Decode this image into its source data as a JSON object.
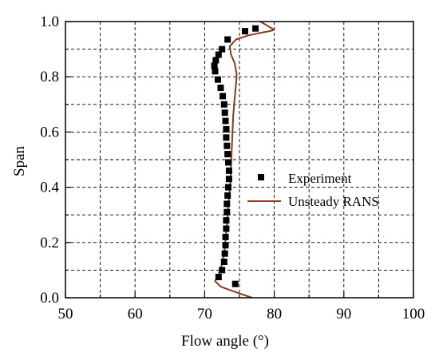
{
  "chart_data": {
    "type": "scatter",
    "xlabel": "Flow angle (°)",
    "ylabel": "Span",
    "xlim": [
      50,
      100
    ],
    "ylim": [
      0.0,
      1.0
    ],
    "x_ticks": [
      "50",
      "60",
      "70",
      "80",
      "90",
      "100"
    ],
    "y_ticks": [
      "0.0",
      "0.2",
      "0.4",
      "0.6",
      "0.8",
      "1.0"
    ],
    "grid": true,
    "grid_style": "dashed",
    "legend_position": "right",
    "series": [
      {
        "name": "Experiment",
        "kind": "markers",
        "marker": "square",
        "color": "#000000",
        "points": [
          {
            "x": 74.4,
            "y": 0.05
          },
          {
            "x": 72.0,
            "y": 0.075
          },
          {
            "x": 72.5,
            "y": 0.1
          },
          {
            "x": 72.8,
            "y": 0.13
          },
          {
            "x": 72.9,
            "y": 0.16
          },
          {
            "x": 73.0,
            "y": 0.19
          },
          {
            "x": 73.0,
            "y": 0.22
          },
          {
            "x": 73.1,
            "y": 0.25
          },
          {
            "x": 73.1,
            "y": 0.28
          },
          {
            "x": 73.2,
            "y": 0.31
          },
          {
            "x": 73.2,
            "y": 0.34
          },
          {
            "x": 73.3,
            "y": 0.37
          },
          {
            "x": 73.4,
            "y": 0.4
          },
          {
            "x": 73.5,
            "y": 0.43
          },
          {
            "x": 73.5,
            "y": 0.46
          },
          {
            "x": 73.4,
            "y": 0.49
          },
          {
            "x": 73.3,
            "y": 0.52
          },
          {
            "x": 73.2,
            "y": 0.55
          },
          {
            "x": 73.1,
            "y": 0.58
          },
          {
            "x": 73.1,
            "y": 0.61
          },
          {
            "x": 73.0,
            "y": 0.64
          },
          {
            "x": 72.9,
            "y": 0.67
          },
          {
            "x": 72.8,
            "y": 0.7
          },
          {
            "x": 72.6,
            "y": 0.73
          },
          {
            "x": 72.3,
            "y": 0.76
          },
          {
            "x": 71.9,
            "y": 0.79
          },
          {
            "x": 71.5,
            "y": 0.82
          },
          {
            "x": 71.4,
            "y": 0.84
          },
          {
            "x": 71.6,
            "y": 0.86
          },
          {
            "x": 72.0,
            "y": 0.88
          },
          {
            "x": 72.5,
            "y": 0.9
          },
          {
            "x": 73.3,
            "y": 0.935
          },
          {
            "x": 75.8,
            "y": 0.965
          },
          {
            "x": 77.3,
            "y": 0.975
          }
        ]
      },
      {
        "name": "Unsteady RANS",
        "kind": "line",
        "color": "#8B3A1A",
        "points": [
          {
            "x": 76.8,
            "y": 0.0
          },
          {
            "x": 74.5,
            "y": 0.02
          },
          {
            "x": 72.3,
            "y": 0.04
          },
          {
            "x": 71.5,
            "y": 0.06
          },
          {
            "x": 72.1,
            "y": 0.09
          },
          {
            "x": 72.6,
            "y": 0.13
          },
          {
            "x": 72.9,
            "y": 0.18
          },
          {
            "x": 73.1,
            "y": 0.24
          },
          {
            "x": 73.3,
            "y": 0.3
          },
          {
            "x": 73.5,
            "y": 0.36
          },
          {
            "x": 73.7,
            "y": 0.42
          },
          {
            "x": 73.8,
            "y": 0.48
          },
          {
            "x": 73.9,
            "y": 0.54
          },
          {
            "x": 74.0,
            "y": 0.6
          },
          {
            "x": 74.1,
            "y": 0.66
          },
          {
            "x": 74.3,
            "y": 0.72
          },
          {
            "x": 74.5,
            "y": 0.77
          },
          {
            "x": 74.6,
            "y": 0.81
          },
          {
            "x": 74.3,
            "y": 0.85
          },
          {
            "x": 73.8,
            "y": 0.88
          },
          {
            "x": 73.6,
            "y": 0.91
          },
          {
            "x": 74.5,
            "y": 0.935
          },
          {
            "x": 76.3,
            "y": 0.95
          },
          {
            "x": 78.2,
            "y": 0.96
          },
          {
            "x": 79.3,
            "y": 0.965
          },
          {
            "x": 80.0,
            "y": 0.97
          },
          {
            "x": 79.0,
            "y": 0.985
          },
          {
            "x": 78.0,
            "y": 1.0
          }
        ]
      }
    ]
  }
}
